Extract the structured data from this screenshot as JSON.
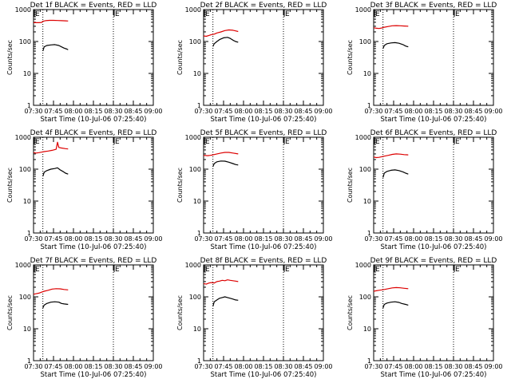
{
  "common": {
    "ylabel": "Counts/sec",
    "xlabel": "Start Time (10-Jul-06 07:25:40)",
    "xticks": [
      "07:30",
      "07:45",
      "08:00",
      "08:15",
      "08:30",
      "08:45",
      "09:00"
    ],
    "yticks": [
      "1",
      "10",
      "100",
      "1000"
    ],
    "marker_label": "E",
    "colors": {
      "events": "#000000",
      "lld": "#dd0000",
      "axes": "#000000",
      "background": "#ffffff"
    }
  },
  "chart_data": [
    {
      "type": "line",
      "title": "Det 1f BLACK = Events, RED = LLD",
      "xlabel": "Start Time (10-Jul-06 07:25:40)",
      "ylabel": "Counts/sec",
      "x_unit": "minutes since 07:30",
      "xlim": [
        0,
        90
      ],
      "ylim": [
        1,
        1000
      ],
      "log_y": true,
      "markers": [
        {
          "label": "E",
          "x": 0
        },
        {
          "label": "E",
          "x": 60
        }
      ],
      "vlines_x": [
        7,
        60
      ],
      "series": [
        {
          "color": "#dd0000",
          "points": [
            [
              0,
              390
            ],
            [
              2,
              390
            ],
            [
              4,
              390
            ],
            [
              6,
              395
            ],
            [
              7,
              430
            ],
            [
              9,
              450
            ],
            [
              12,
              460
            ],
            [
              15,
              460
            ],
            [
              18,
              455
            ],
            [
              21,
              450
            ],
            [
              24,
              445
            ],
            [
              26,
              440
            ]
          ]
        },
        {
          "color": "#000000",
          "points": [
            [
              7,
              50
            ],
            [
              8,
              68
            ],
            [
              10,
              75
            ],
            [
              13,
              78
            ],
            [
              16,
              80
            ],
            [
              19,
              75
            ],
            [
              21,
              68
            ],
            [
              23,
              62
            ],
            [
              25,
              58
            ],
            [
              26,
              55
            ]
          ]
        }
      ]
    },
    {
      "type": "line",
      "title": "Det 2f BLACK = Events, RED = LLD",
      "xlabel": "Start Time (10-Jul-06 07:25:40)",
      "ylabel": "Counts/sec",
      "x_unit": "minutes since 07:30",
      "xlim": [
        0,
        90
      ],
      "ylim": [
        1,
        1000
      ],
      "log_y": true,
      "markers": [
        {
          "label": "E",
          "x": 0
        },
        {
          "label": "E",
          "x": 60
        }
      ],
      "vlines_x": [
        7,
        60
      ],
      "series": [
        {
          "color": "#dd0000",
          "points": [
            [
              0,
              150
            ],
            [
              2,
              145
            ],
            [
              4,
              155
            ],
            [
              6,
              165
            ],
            [
              8,
              170
            ],
            [
              10,
              185
            ],
            [
              13,
              200
            ],
            [
              16,
              220
            ],
            [
              19,
              230
            ],
            [
              22,
              225
            ],
            [
              24,
              215
            ],
            [
              26,
              205
            ]
          ]
        },
        {
          "color": "#000000",
          "points": [
            [
              7,
              70
            ],
            [
              8,
              85
            ],
            [
              10,
              100
            ],
            [
              12,
              115
            ],
            [
              15,
              130
            ],
            [
              18,
              135
            ],
            [
              20,
              125
            ],
            [
              22,
              110
            ],
            [
              24,
              100
            ],
            [
              26,
              95
            ]
          ]
        }
      ]
    },
    {
      "type": "line",
      "title": "Det 3f BLACK = Events, RED = LLD",
      "xlabel": "Start Time (10-Jul-06 07:25:40)",
      "ylabel": "Counts/sec",
      "x_unit": "minutes since 07:30",
      "xlim": [
        0,
        90
      ],
      "ylim": [
        1,
        1000
      ],
      "log_y": true,
      "markers": [
        {
          "label": "E",
          "x": 0
        },
        {
          "label": "E",
          "x": 60
        }
      ],
      "vlines_x": [
        7,
        60
      ],
      "series": [
        {
          "color": "#dd0000",
          "points": [
            [
              0,
              270
            ],
            [
              2,
              260
            ],
            [
              4,
              255
            ],
            [
              6,
              265
            ],
            [
              8,
              280
            ],
            [
              11,
              295
            ],
            [
              14,
              310
            ],
            [
              17,
              315
            ],
            [
              20,
              310
            ],
            [
              23,
              305
            ],
            [
              26,
              300
            ]
          ]
        },
        {
          "color": "#000000",
          "points": [
            [
              7,
              60
            ],
            [
              8,
              75
            ],
            [
              10,
              85
            ],
            [
              13,
              90
            ],
            [
              16,
              92
            ],
            [
              19,
              88
            ],
            [
              22,
              80
            ],
            [
              24,
              72
            ],
            [
              26,
              68
            ]
          ]
        }
      ]
    },
    {
      "type": "line",
      "title": "Det 4f BLACK = Events, RED = LLD",
      "xlabel": "Start Time (10-Jul-06 07:25:40)",
      "ylabel": "Counts/sec",
      "x_unit": "minutes since 07:30",
      "xlim": [
        0,
        90
      ],
      "ylim": [
        1,
        1000
      ],
      "log_y": true,
      "markers": [
        {
          "label": "E",
          "x": 0
        },
        {
          "label": "E",
          "x": 60
        }
      ],
      "vlines_x": [
        7,
        60
      ],
      "series": [
        {
          "color": "#dd0000",
          "points": [
            [
              0,
              330
            ],
            [
              2,
              320
            ],
            [
              4,
              330
            ],
            [
              6,
              340
            ],
            [
              8,
              355
            ],
            [
              11,
              370
            ],
            [
              14,
              390
            ],
            [
              17,
              420
            ],
            [
              18,
              700
            ],
            [
              19,
              480
            ],
            [
              21,
              460
            ],
            [
              24,
              440
            ],
            [
              26,
              430
            ]
          ]
        },
        {
          "color": "#000000",
          "points": [
            [
              7,
              60
            ],
            [
              8,
              80
            ],
            [
              10,
              90
            ],
            [
              13,
              100
            ],
            [
              16,
              105
            ],
            [
              18,
              110
            ],
            [
              20,
              95
            ],
            [
              22,
              85
            ],
            [
              24,
              75
            ],
            [
              26,
              70
            ]
          ]
        }
      ]
    },
    {
      "type": "line",
      "title": "Det 5f BLACK = Events, RED = LLD",
      "xlabel": "Start Time (10-Jul-06 07:25:40)",
      "ylabel": "Counts/sec",
      "x_unit": "minutes since 07:30",
      "xlim": [
        0,
        90
      ],
      "ylim": [
        1,
        1000
      ],
      "log_y": true,
      "markers": [
        {
          "label": "E",
          "x": 0
        },
        {
          "label": "E",
          "x": 60
        }
      ],
      "vlines_x": [
        7,
        60
      ],
      "series": [
        {
          "color": "#dd0000",
          "points": [
            [
              0,
              270
            ],
            [
              3,
              265
            ],
            [
              5,
              270
            ],
            [
              7,
              280
            ],
            [
              10,
              300
            ],
            [
              13,
              320
            ],
            [
              16,
              335
            ],
            [
              19,
              335
            ],
            [
              22,
              320
            ],
            [
              25,
              305
            ],
            [
              26,
              300
            ]
          ]
        },
        {
          "color": "#000000",
          "points": [
            [
              7,
              120
            ],
            [
              8,
              150
            ],
            [
              10,
              170
            ],
            [
              13,
              180
            ],
            [
              16,
              178
            ],
            [
              19,
              165
            ],
            [
              22,
              150
            ],
            [
              24,
              140
            ],
            [
              26,
              135
            ]
          ]
        }
      ]
    },
    {
      "type": "line",
      "title": "Det 6f BLACK = Events, RED = LLD",
      "xlabel": "Start Time (10-Jul-06 07:25:40)",
      "ylabel": "Counts/sec",
      "x_unit": "minutes since 07:30",
      "xlim": [
        0,
        90
      ],
      "ylim": [
        1,
        1000
      ],
      "log_y": true,
      "markers": [
        {
          "label": "E",
          "x": 0
        },
        {
          "label": "E",
          "x": 60
        }
      ],
      "vlines_x": [
        7,
        60
      ],
      "series": [
        {
          "color": "#dd0000",
          "points": [
            [
              0,
              240
            ],
            [
              2,
              230
            ],
            [
              4,
              235
            ],
            [
              6,
              245
            ],
            [
              8,
              255
            ],
            [
              11,
              270
            ],
            [
              14,
              290
            ],
            [
              17,
              300
            ],
            [
              20,
              295
            ],
            [
              23,
              285
            ],
            [
              26,
              280
            ]
          ]
        },
        {
          "color": "#000000",
          "points": [
            [
              7,
              55
            ],
            [
              8,
              75
            ],
            [
              10,
              85
            ],
            [
              13,
              92
            ],
            [
              16,
              95
            ],
            [
              19,
              90
            ],
            [
              22,
              82
            ],
            [
              24,
              75
            ],
            [
              26,
              70
            ]
          ]
        }
      ]
    },
    {
      "type": "line",
      "title": "Det 7f BLACK = Events, RED = LLD",
      "xlabel": "Start Time (10-Jul-06 07:25:40)",
      "ylabel": "Counts/sec",
      "x_unit": "minutes since 07:30",
      "xlim": [
        0,
        90
      ],
      "ylim": [
        1,
        1000
      ],
      "log_y": true,
      "markers": [
        {
          "label": "E",
          "x": 0
        },
        {
          "label": "E",
          "x": 60
        }
      ],
      "vlines_x": [
        7,
        60
      ],
      "series": [
        {
          "color": "#dd0000",
          "points": [
            [
              0,
              120
            ],
            [
              2,
              125
            ],
            [
              4,
              130
            ],
            [
              6,
              140
            ],
            [
              8,
              150
            ],
            [
              11,
              160
            ],
            [
              14,
              175
            ],
            [
              17,
              180
            ],
            [
              20,
              178
            ],
            [
              23,
              170
            ],
            [
              26,
              165
            ]
          ]
        },
        {
          "color": "#000000",
          "points": [
            [
              7,
              45
            ],
            [
              8,
              55
            ],
            [
              10,
              62
            ],
            [
              13,
              68
            ],
            [
              16,
              70
            ],
            [
              19,
              68
            ],
            [
              21,
              62
            ],
            [
              23,
              60
            ],
            [
              26,
              58
            ]
          ]
        }
      ]
    },
    {
      "type": "line",
      "title": "Det 8f BLACK = Events, RED = LLD",
      "xlabel": "Start Time (10-Jul-06 07:25:40)",
      "ylabel": "Counts/sec",
      "x_unit": "minutes since 07:30",
      "xlim": [
        0,
        90
      ],
      "ylim": [
        1,
        1000
      ],
      "log_y": true,
      "markers": [
        {
          "label": "E",
          "x": 0
        },
        {
          "label": "E",
          "x": 60
        }
      ],
      "vlines_x": [
        7,
        60
      ],
      "series": [
        {
          "color": "#dd0000",
          "points": [
            [
              0,
              260
            ],
            [
              2,
              250
            ],
            [
              4,
              270
            ],
            [
              6,
              280
            ],
            [
              8,
              270
            ],
            [
              10,
              300
            ],
            [
              12,
              310
            ],
            [
              14,
              330
            ],
            [
              16,
              320
            ],
            [
              18,
              340
            ],
            [
              20,
              330
            ],
            [
              22,
              320
            ],
            [
              24,
              310
            ],
            [
              26,
              300
            ]
          ]
        },
        {
          "color": "#000000",
          "points": [
            [
              7,
              50
            ],
            [
              8,
              70
            ],
            [
              10,
              80
            ],
            [
              12,
              90
            ],
            [
              14,
              95
            ],
            [
              16,
              100
            ],
            [
              18,
              95
            ],
            [
              20,
              90
            ],
            [
              22,
              85
            ],
            [
              24,
              80
            ],
            [
              26,
              78
            ]
          ]
        }
      ]
    },
    {
      "type": "line",
      "title": "Det 9f BLACK = Events, RED = LLD",
      "xlabel": "Start Time (10-Jul-06 07:25:40)",
      "ylabel": "Counts/sec",
      "x_unit": "minutes since 07:30",
      "xlim": [
        0,
        90
      ],
      "ylim": [
        1,
        1000
      ],
      "log_y": true,
      "markers": [
        {
          "label": "E",
          "x": 0
        },
        {
          "label": "E",
          "x": 60
        }
      ],
      "vlines_x": [
        7,
        60
      ],
      "series": [
        {
          "color": "#dd0000",
          "points": [
            [
              0,
              150
            ],
            [
              2,
              155
            ],
            [
              4,
              160
            ],
            [
              6,
              165
            ],
            [
              8,
              170
            ],
            [
              11,
              180
            ],
            [
              14,
              190
            ],
            [
              17,
              195
            ],
            [
              20,
              192
            ],
            [
              23,
              185
            ],
            [
              26,
              180
            ]
          ]
        },
        {
          "color": "#000000",
          "points": [
            [
              7,
              45
            ],
            [
              8,
              58
            ],
            [
              10,
              64
            ],
            [
              13,
              68
            ],
            [
              16,
              70
            ],
            [
              19,
              67
            ],
            [
              21,
              62
            ],
            [
              24,
              58
            ],
            [
              26,
              55
            ]
          ]
        }
      ]
    }
  ]
}
